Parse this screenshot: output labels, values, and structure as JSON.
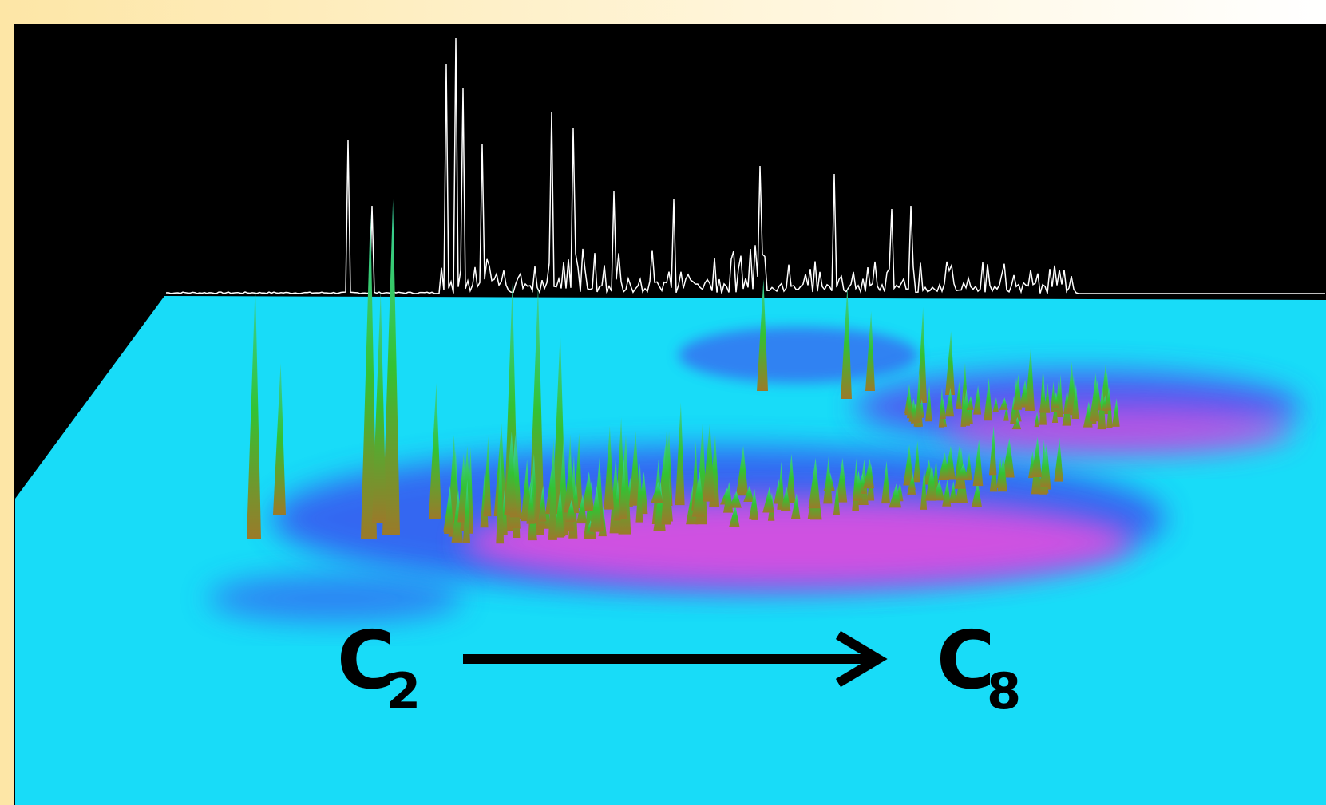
{
  "labels": {
    "start": {
      "main": "C",
      "sub": "2"
    },
    "end": {
      "main": "C",
      "sub": "8"
    }
  }
}
